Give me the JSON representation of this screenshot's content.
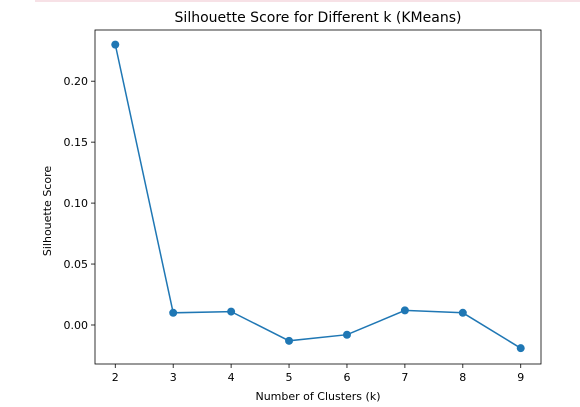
{
  "chart_data": {
    "type": "line",
    "title": "Silhouette Score for Different k (KMeans)",
    "xlabel": "Number of Clusters (k)",
    "ylabel": "Silhouette Score",
    "x": [
      2,
      3,
      4,
      5,
      6,
      7,
      8,
      9
    ],
    "series": [
      {
        "values": [
          0.23,
          0.01,
          0.011,
          -0.013,
          -0.008,
          0.012,
          0.01,
          -0.019
        ]
      }
    ],
    "xlim": [
      1.65,
      9.35
    ],
    "ylim": [
      -0.032,
      0.242
    ],
    "xticks": [
      "2",
      "3",
      "4",
      "5",
      "6",
      "7",
      "8",
      "9"
    ],
    "yticks": [
      {
        "value": 0.0,
        "label": "0.00"
      },
      {
        "value": 0.05,
        "label": "0.05"
      },
      {
        "value": 0.1,
        "label": "0.10"
      },
      {
        "value": 0.15,
        "label": "0.15"
      },
      {
        "value": 0.2,
        "label": "0.20"
      }
    ],
    "grid": false,
    "color": "#1f77b4"
  }
}
